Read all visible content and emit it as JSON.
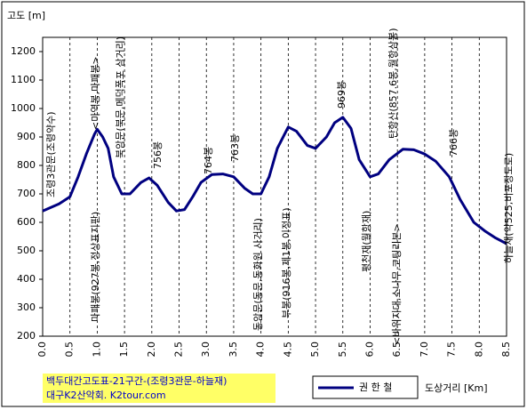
{
  "chart_data": {
    "type": "line",
    "title": "백두대간고도표-21구간-(조령3관문-하늘재)",
    "subtitle": "대구K2산악회. K2tour.com",
    "y_label": "고도 [m]",
    "x_label": "도상거리 [Km]",
    "x": [
      0,
      0.3,
      0.5,
      0.65,
      0.8,
      0.95,
      1.0,
      1.1,
      1.2,
      1.3,
      1.45,
      1.6,
      1.8,
      1.95,
      2.1,
      2.3,
      2.45,
      2.6,
      2.75,
      2.9,
      3.1,
      3.3,
      3.5,
      3.7,
      3.85,
      4.0,
      4.15,
      4.3,
      4.5,
      4.65,
      4.85,
      5.0,
      5.2,
      5.35,
      5.5,
      5.65,
      5.8,
      6.0,
      6.15,
      6.35,
      6.6,
      6.8,
      7.0,
      7.2,
      7.45,
      7.65,
      7.9,
      8.1,
      8.3,
      8.5
    ],
    "series": [
      {
        "name": "권 한 철",
        "color": "#000080",
        "values": [
          640,
          665,
          690,
          760,
          840,
          910,
          927,
          900,
          860,
          760,
          700,
          700,
          740,
          756,
          730,
          670,
          640,
          645,
          690,
          740,
          768,
          770,
          760,
          720,
          700,
          700,
          760,
          860,
          935,
          920,
          870,
          860,
          900,
          950,
          969,
          930,
          820,
          760,
          770,
          820,
          857,
          855,
          840,
          815,
          760,
          680,
          600,
          570,
          545,
          525
        ]
      }
    ],
    "xlim": [
      0,
      8.5
    ],
    "xticks": [
      {
        "value": 0,
        "label": "0.0"
      },
      0.5,
      {
        "value": 1,
        "label": "1.0"
      },
      1.5,
      {
        "value": 2,
        "label": "2.0"
      },
      2.5,
      {
        "value": 3,
        "label": "3.0"
      },
      3.5,
      {
        "value": 4,
        "label": "4.0"
      },
      4.5,
      {
        "value": 5,
        "label": "5.0"
      },
      5.5,
      {
        "value": 6,
        "label": "6.0"
      },
      6.5,
      {
        "value": 7,
        "label": "7.0"
      },
      7.5,
      {
        "value": 8,
        "label": "8.0"
      },
      8.5
    ],
    "ylim": [
      200,
      1250
    ],
    "yticks": [
      200,
      300,
      400,
      500,
      600,
      700,
      800,
      900,
      1000,
      1100,
      1200
    ],
    "grid": true,
    "annotations": [
      "조령3관문(조령약수)",
      "마패봉(927봉,정상표지판)",
      "<마역봉,마패봉>",
      "북암문(북문,메덕폭포 삼거리)",
      "756봉",
      "764봉",
      "763봉",
      "동암문(동문,동화원 사거리)",
      "부봉(916봉,제1봉,이정표)",
      "969봉",
      "평천재(월항재)",
      "탄항산(857.6봉,월항삼봉)",
      "<바위지대,소나무,코팅리본>",
      "766봉",
      "하늘재(약525,비포장도로)"
    ]
  }
}
